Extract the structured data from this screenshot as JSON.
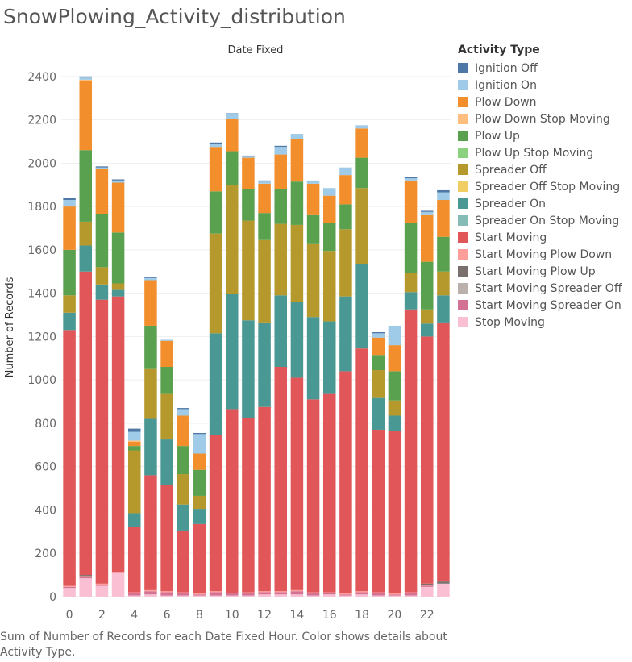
{
  "title": "SnowPlowing_Activity_distribution",
  "caption": "Sum of Number of Records for each Date Fixed Hour.  Color shows details about Activity Type.",
  "legend": {
    "title": "Activity Type",
    "items": [
      {
        "label": "Ignition Off",
        "color": "#4e79a7"
      },
      {
        "label": "Ignition On",
        "color": "#a0cbe8"
      },
      {
        "label": "Plow Down",
        "color": "#f28e2b"
      },
      {
        "label": "Plow Down  Stop Moving",
        "color": "#ffbe7d"
      },
      {
        "label": "Plow Up",
        "color": "#59a14f"
      },
      {
        "label": "Plow Up  Stop Moving",
        "color": "#8cd17d"
      },
      {
        "label": "Spreader Off",
        "color": "#b6992d"
      },
      {
        "label": "Spreader Off  Stop Moving",
        "color": "#f1ce63"
      },
      {
        "label": "Spreader On",
        "color": "#499894"
      },
      {
        "label": "Spreader On  Stop Moving",
        "color": "#86bcb6"
      },
      {
        "label": "Start Moving",
        "color": "#e15759"
      },
      {
        "label": "Start Moving  Plow Down",
        "color": "#ff9d9a"
      },
      {
        "label": "Start Moving  Plow Up",
        "color": "#79706e"
      },
      {
        "label": "Start Moving  Spreader Off",
        "color": "#bab0ac"
      },
      {
        "label": "Start Moving  Spreader On",
        "color": "#d37295"
      },
      {
        "label": "Stop Moving",
        "color": "#fabfd2"
      }
    ]
  },
  "chart_data": {
    "type": "bar",
    "stacked": true,
    "title": "Date Fixed",
    "xlabel": "",
    "ylabel": "Number of Records",
    "ylim": [
      -30,
      2470
    ],
    "y_ticks": [
      0,
      200,
      400,
      600,
      800,
      1000,
      1200,
      1400,
      1600,
      1800,
      2000,
      2200,
      2400
    ],
    "x_tick_labels": [
      "0",
      "2",
      "4",
      "6",
      "8",
      "10",
      "12",
      "14",
      "16",
      "18",
      "20",
      "22"
    ],
    "categories": [
      "0",
      "1",
      "2",
      "3",
      "4",
      "5",
      "6",
      "7",
      "8",
      "9",
      "10",
      "11",
      "12",
      "13",
      "14",
      "15",
      "16",
      "17",
      "18",
      "19",
      "20",
      "21",
      "22",
      "23"
    ],
    "gridlines": true,
    "series": [
      {
        "name": "Stop Moving",
        "values": [
          40,
          85,
          50,
          110,
          5,
          10,
          5,
          5,
          5,
          5,
          5,
          5,
          10,
          10,
          10,
          5,
          10,
          5,
          10,
          5,
          5,
          5,
          45,
          60
        ]
      },
      {
        "name": "Start Moving  Spreader On",
        "values": [
          5,
          5,
          5,
          0,
          10,
          15,
          15,
          10,
          5,
          15,
          10,
          10,
          10,
          10,
          15,
          10,
          5,
          5,
          10,
          10,
          5,
          10,
          5,
          0
        ]
      },
      {
        "name": "Start Moving  Plow Down",
        "values": [
          5,
          5,
          5,
          0,
          5,
          5,
          5,
          5,
          5,
          5,
          0,
          5,
          5,
          5,
          5,
          5,
          5,
          5,
          5,
          5,
          5,
          5,
          5,
          0
        ]
      },
      {
        "name": "Start Moving  Plow Up",
        "values": [
          0,
          5,
          0,
          0,
          0,
          0,
          0,
          0,
          0,
          0,
          0,
          0,
          0,
          0,
          0,
          0,
          0,
          0,
          0,
          0,
          0,
          0,
          5,
          10
        ]
      },
      {
        "name": "Start Moving",
        "values": [
          1180,
          1400,
          1310,
          1275,
          300,
          530,
          490,
          285,
          320,
          720,
          850,
          805,
          850,
          1035,
          980,
          890,
          915,
          1025,
          1120,
          750,
          750,
          1305,
          1140,
          1195
        ]
      },
      {
        "name": "Spreader On",
        "values": [
          80,
          120,
          70,
          30,
          65,
          260,
          210,
          120,
          70,
          470,
          530,
          450,
          390,
          330,
          350,
          380,
          335,
          345,
          390,
          150,
          70,
          80,
          60,
          125
        ]
      },
      {
        "name": "Spreader Off",
        "values": [
          80,
          110,
          80,
          30,
          290,
          230,
          210,
          140,
          60,
          460,
          505,
          460,
          380,
          330,
          355,
          340,
          325,
          310,
          350,
          125,
          70,
          90,
          65,
          110
        ]
      },
      {
        "name": "Plow Up",
        "values": [
          210,
          330,
          245,
          235,
          20,
          200,
          125,
          130,
          120,
          195,
          155,
          145,
          125,
          160,
          200,
          130,
          130,
          115,
          140,
          70,
          135,
          230,
          220,
          160
        ]
      },
      {
        "name": "Plow Down",
        "values": [
          200,
          320,
          210,
          230,
          20,
          210,
          120,
          140,
          75,
          205,
          150,
          145,
          135,
          160,
          195,
          145,
          125,
          135,
          135,
          80,
          120,
          195,
          215,
          170
        ]
      },
      {
        "name": "Plow Down  Stop Moving",
        "values": [
          0,
          5,
          0,
          0,
          5,
          0,
          0,
          0,
          0,
          0,
          0,
          0,
          0,
          0,
          0,
          0,
          0,
          0,
          0,
          0,
          0,
          0,
          0,
          0
        ]
      },
      {
        "name": "Ignition On",
        "values": [
          30,
          10,
          5,
          10,
          40,
          10,
          5,
          30,
          90,
          15,
          20,
          5,
          10,
          35,
          25,
          15,
          35,
          35,
          15,
          20,
          90,
          10,
          15,
          35
        ]
      },
      {
        "name": "Ignition Off",
        "values": [
          10,
          5,
          5,
          5,
          15,
          5,
          0,
          5,
          5,
          5,
          5,
          5,
          5,
          5,
          0,
          0,
          0,
          0,
          0,
          5,
          0,
          5,
          5,
          10
        ]
      }
    ]
  }
}
